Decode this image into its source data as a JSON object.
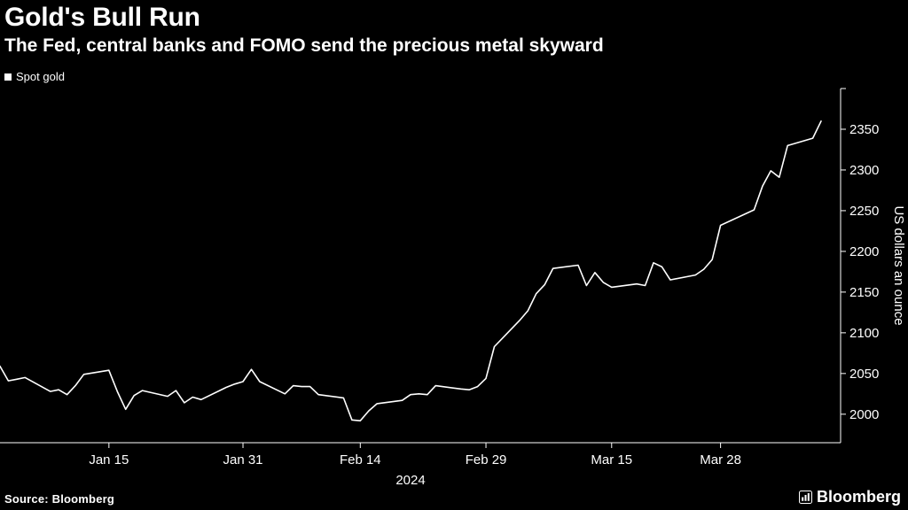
{
  "header": {
    "title": "Gold's Bull Run",
    "subtitle": "The Fed, central banks and FOMO send the precious metal skyward"
  },
  "legend": {
    "label": "Spot gold",
    "marker_color": "#ffffff"
  },
  "chart_data": {
    "type": "line",
    "title": "Gold's Bull Run",
    "subtitle": "The Fed, central banks and FOMO send the precious metal skyward",
    "ylabel": "US dollars an ounce",
    "xlabel": "2024",
    "ylim": [
      1965,
      2400
    ],
    "yticks": [
      2000,
      2050,
      2100,
      2150,
      2200,
      2250,
      2300,
      2350
    ],
    "grid": false,
    "legend_position": "top-left",
    "background_color": "#000000",
    "line_color": "#ffffff",
    "x_range": [
      "2024-01-02",
      "2024-04-09"
    ],
    "xticks": [
      {
        "label": "Jan 15",
        "date": "2024-01-15"
      },
      {
        "label": "Jan 31",
        "date": "2024-01-31"
      },
      {
        "label": "Feb 14",
        "date": "2024-02-14"
      },
      {
        "label": "Feb 29",
        "date": "2024-02-29"
      },
      {
        "label": "Mar 15",
        "date": "2024-03-15"
      },
      {
        "label": "Mar 28",
        "date": "2024-03-28"
      }
    ],
    "series": [
      {
        "name": "Spot gold",
        "color": "#ffffff",
        "dates": [
          "2024-01-02",
          "2024-01-03",
          "2024-01-04",
          "2024-01-05",
          "2024-01-08",
          "2024-01-09",
          "2024-01-10",
          "2024-01-11",
          "2024-01-12",
          "2024-01-15",
          "2024-01-16",
          "2024-01-17",
          "2024-01-18",
          "2024-01-19",
          "2024-01-22",
          "2024-01-23",
          "2024-01-24",
          "2024-01-25",
          "2024-01-26",
          "2024-01-29",
          "2024-01-30",
          "2024-01-31",
          "2024-02-01",
          "2024-02-02",
          "2024-02-05",
          "2024-02-06",
          "2024-02-07",
          "2024-02-08",
          "2024-02-09",
          "2024-02-12",
          "2024-02-13",
          "2024-02-14",
          "2024-02-15",
          "2024-02-16",
          "2024-02-19",
          "2024-02-20",
          "2024-02-21",
          "2024-02-22",
          "2024-02-23",
          "2024-02-26",
          "2024-02-27",
          "2024-02-28",
          "2024-02-29",
          "2024-03-01",
          "2024-03-04",
          "2024-03-05",
          "2024-03-06",
          "2024-03-07",
          "2024-03-08",
          "2024-03-11",
          "2024-03-12",
          "2024-03-13",
          "2024-03-14",
          "2024-03-15",
          "2024-03-18",
          "2024-03-19",
          "2024-03-20",
          "2024-03-21",
          "2024-03-22",
          "2024-03-25",
          "2024-03-26",
          "2024-03-27",
          "2024-03-28",
          "2024-04-01",
          "2024-04-02",
          "2024-04-03",
          "2024-04-04",
          "2024-04-05",
          "2024-04-08",
          "2024-04-09"
        ],
        "values": [
          2059,
          2041,
          2043,
          2045,
          2028,
          2030,
          2024,
          2035,
          2049,
          2054,
          2028,
          2006,
          2023,
          2029,
          2022,
          2029,
          2014,
          2021,
          2018,
          2033,
          2037,
          2040,
          2055,
          2040,
          2025,
          2035,
          2034,
          2034,
          2024,
          2020,
          1993,
          1992,
          2004,
          2013,
          2017,
          2024,
          2025,
          2024,
          2035,
          2031,
          2030,
          2034,
          2044,
          2083,
          2115,
          2127,
          2148,
          2159,
          2179,
          2183,
          2158,
          2174,
          2162,
          2156,
          2160,
          2158,
          2186,
          2181,
          2165,
          2171,
          2178,
          2190,
          2232,
          2251,
          2280,
          2299,
          2291,
          2330,
          2339,
          2360
        ]
      }
    ]
  },
  "footer": {
    "source": "Source: Bloomberg",
    "brand": "Bloomberg"
  }
}
